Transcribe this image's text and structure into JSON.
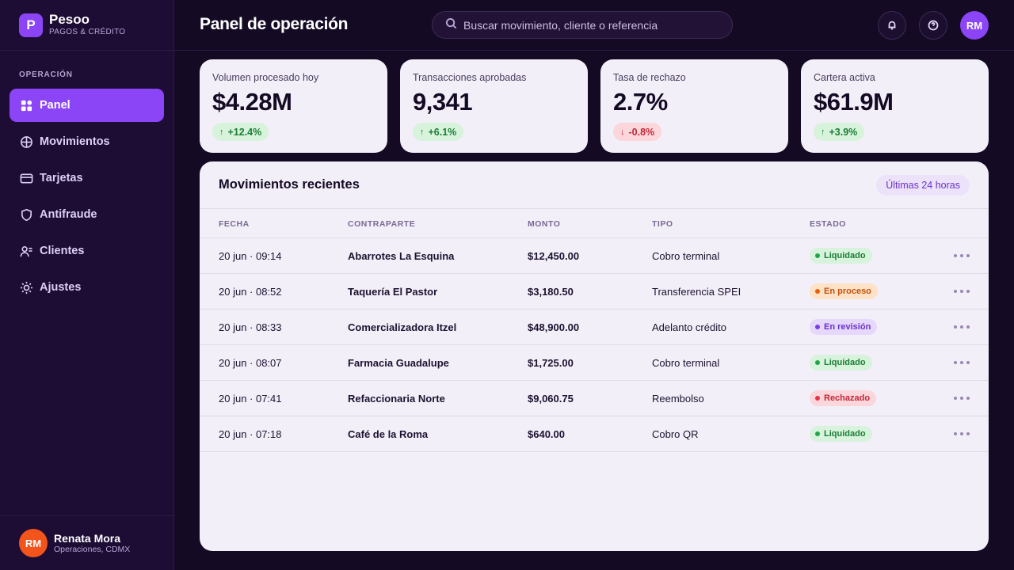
{
  "brand": {
    "initial": "P",
    "name": "Pesoo",
    "subtitle": "PAGOS & CRÉDITO"
  },
  "sidebar": {
    "section": "OPERACIÓN",
    "items": [
      {
        "label": "Panel",
        "icon": "grid-icon",
        "active": true
      },
      {
        "label": "Movimientos",
        "icon": "globe-icon",
        "active": false
      },
      {
        "label": "Tarjetas",
        "icon": "card-icon",
        "active": false
      },
      {
        "label": "Antifraude",
        "icon": "shield-icon",
        "active": false
      },
      {
        "label": "Clientes",
        "icon": "users-icon",
        "active": false
      },
      {
        "label": "Ajustes",
        "icon": "sun-gear-icon",
        "active": false
      }
    ]
  },
  "user": {
    "initials": "RM",
    "name": "Renata Mora",
    "role": "Operaciones, CDMX"
  },
  "header": {
    "title": "Panel de operación",
    "search_placeholder": "Buscar movimiento, cliente o referencia",
    "avatar_initials": "RM"
  },
  "kpis": [
    {
      "label": "Volumen procesado hoy",
      "value": "$4.28M",
      "delta": "+12.4%",
      "direction": "up"
    },
    {
      "label": "Transacciones aprobadas",
      "value": "9,341",
      "delta": "+6.1%",
      "direction": "up"
    },
    {
      "label": "Tasa de rechazo",
      "value": "2.7%",
      "delta": "-0.8%",
      "direction": "down"
    },
    {
      "label": "Cartera activa",
      "value": "$61.9M",
      "delta": "+3.9%",
      "direction": "up"
    }
  ],
  "movements": {
    "title": "Movimientos recientes",
    "filter": "Últimas 24 horas",
    "columns": [
      "FECHA",
      "CONTRAPARTE",
      "MONTO",
      "TIPO",
      "ESTADO"
    ],
    "rows": [
      {
        "fecha": "20 jun · 09:14",
        "contraparte": "Abarrotes La Esquina",
        "monto": "$12,450.00",
        "tipo": "Cobro terminal",
        "estado": "Liquidado",
        "status": "liq"
      },
      {
        "fecha": "20 jun · 08:52",
        "contraparte": "Taquería El Pastor",
        "monto": "$3,180.50",
        "tipo": "Transferencia SPEI",
        "estado": "En proceso",
        "status": "proc"
      },
      {
        "fecha": "20 jun · 08:33",
        "contraparte": "Comercializadora Itzel",
        "monto": "$48,900.00",
        "tipo": "Adelanto crédito",
        "estado": "En revisión",
        "status": "rev"
      },
      {
        "fecha": "20 jun · 08:07",
        "contraparte": "Farmacia Guadalupe",
        "monto": "$1,725.00",
        "tipo": "Cobro terminal",
        "estado": "Liquidado",
        "status": "liq"
      },
      {
        "fecha": "20 jun · 07:41",
        "contraparte": "Refaccionaria Norte",
        "monto": "$9,060.75",
        "tipo": "Reembolso",
        "estado": "Rechazado",
        "status": "rech"
      },
      {
        "fecha": "20 jun · 07:18",
        "contraparte": "Café de la Roma",
        "monto": "$640.00",
        "tipo": "Cobro QR",
        "estado": "Liquidado",
        "status": "liq"
      }
    ]
  },
  "colors": {
    "accent": "#8b45f6",
    "background": "#150a24",
    "sidebar": "#1d0d35",
    "card": "#f2eff8",
    "success": "#1b7d35",
    "danger": "#c2283b",
    "warning": "#c4510c"
  }
}
